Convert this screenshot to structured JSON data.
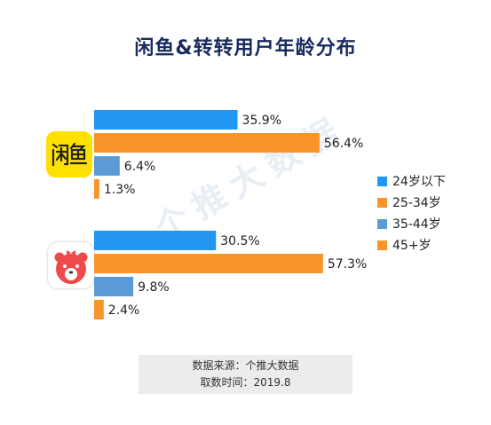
{
  "title": "闲鱼&转转用户年龄分布",
  "watermark": "个推大数据",
  "source": {
    "line1": "数据来源：个推大数据",
    "line2": "取数时间：2019.8"
  },
  "colors": {
    "c1": "#2196f3",
    "c2": "#f7952a",
    "c3": "#5b9bd5",
    "c4": "#f7952a"
  },
  "chart_data": {
    "type": "bar",
    "orientation": "horizontal",
    "title": "闲鱼&转转用户年龄分布",
    "categories": [
      "闲鱼",
      "转转"
    ],
    "series": [
      {
        "name": "24岁以下",
        "values": [
          35.9,
          30.5
        ],
        "color": "#2196f3"
      },
      {
        "name": "25-34岁",
        "values": [
          56.4,
          57.3
        ],
        "color": "#f7952a"
      },
      {
        "name": "35-44岁",
        "values": [
          6.4,
          9.8
        ],
        "color": "#5b9bd5"
      },
      {
        "name": "45+岁",
        "values": [
          1.3,
          2.4
        ],
        "color": "#f7952a"
      }
    ],
    "unit": "%",
    "legend": "right"
  }
}
